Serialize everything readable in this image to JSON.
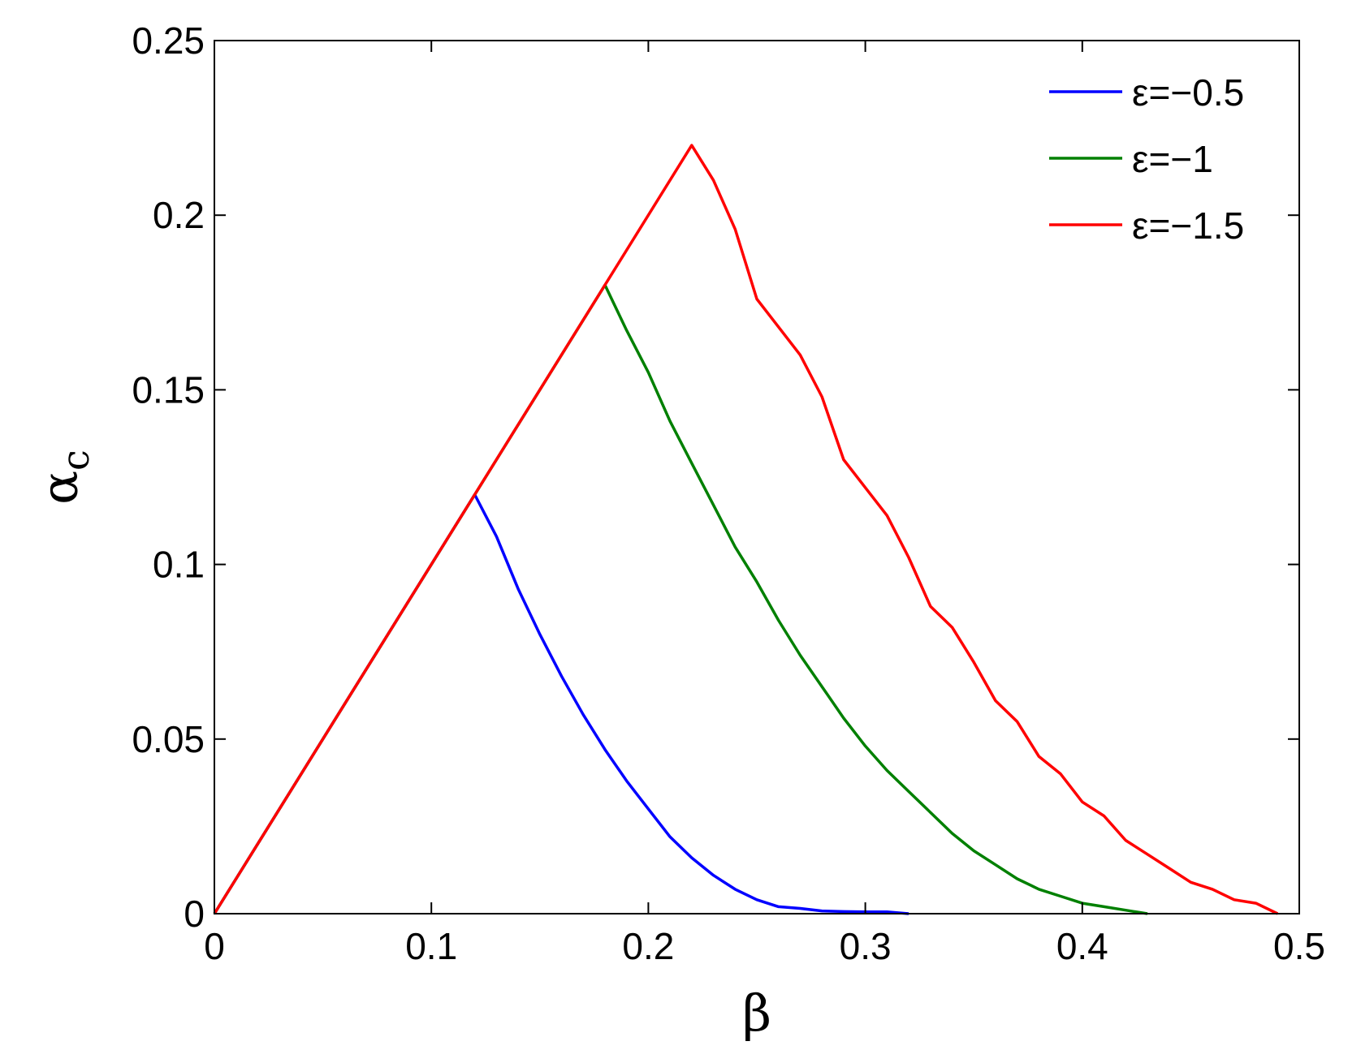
{
  "chart_data": {
    "type": "line",
    "xlabel": "β",
    "ylabel": "α",
    "ylabel_subscript": "c",
    "xlim": [
      0,
      0.5
    ],
    "ylim": [
      0,
      0.25
    ],
    "xticks": [
      "0",
      "0.1",
      "0.2",
      "0.3",
      "0.4",
      "0.5"
    ],
    "yticks": [
      "0",
      "0.05",
      "0.1",
      "0.15",
      "0.2",
      "0.25"
    ],
    "grid": false,
    "legend_position": "top-right",
    "series": [
      {
        "name": "ε=−0.5",
        "color": "#0000ff",
        "x": [
          0,
          0.12,
          0.13,
          0.14,
          0.15,
          0.16,
          0.17,
          0.18,
          0.19,
          0.2,
          0.21,
          0.22,
          0.23,
          0.24,
          0.25,
          0.26,
          0.27,
          0.28,
          0.29,
          0.3,
          0.31,
          0.32
        ],
        "y": [
          0,
          0.12,
          0.108,
          0.093,
          0.08,
          0.068,
          0.057,
          0.047,
          0.038,
          0.03,
          0.022,
          0.016,
          0.011,
          0.007,
          0.004,
          0.002,
          0.0015,
          0.0008,
          0.0006,
          0.0005,
          0.0005,
          0
        ]
      },
      {
        "name": "ε=−1",
        "color": "#008000",
        "x": [
          0,
          0.18,
          0.19,
          0.2,
          0.21,
          0.22,
          0.23,
          0.24,
          0.25,
          0.26,
          0.27,
          0.28,
          0.29,
          0.3,
          0.31,
          0.32,
          0.33,
          0.34,
          0.35,
          0.36,
          0.37,
          0.38,
          0.39,
          0.4,
          0.41,
          0.42,
          0.43
        ],
        "y": [
          0,
          0.18,
          0.167,
          0.155,
          0.141,
          0.129,
          0.117,
          0.105,
          0.095,
          0.084,
          0.074,
          0.065,
          0.056,
          0.048,
          0.041,
          0.035,
          0.029,
          0.023,
          0.018,
          0.014,
          0.01,
          0.007,
          0.005,
          0.003,
          0.002,
          0.001,
          0
        ]
      },
      {
        "name": "ε=−1.5",
        "color": "#ff0000",
        "x": [
          0,
          0.22,
          0.23,
          0.24,
          0.25,
          0.26,
          0.27,
          0.28,
          0.29,
          0.3,
          0.31,
          0.32,
          0.33,
          0.34,
          0.35,
          0.36,
          0.37,
          0.38,
          0.39,
          0.4,
          0.41,
          0.42,
          0.43,
          0.44,
          0.45,
          0.46,
          0.47,
          0.48,
          0.49
        ],
        "y": [
          0,
          0.22,
          0.21,
          0.196,
          0.176,
          0.168,
          0.16,
          0.148,
          0.13,
          0.122,
          0.114,
          0.102,
          0.088,
          0.082,
          0.072,
          0.061,
          0.055,
          0.045,
          0.04,
          0.032,
          0.028,
          0.021,
          0.017,
          0.013,
          0.009,
          0.007,
          0.004,
          0.003,
          0
        ]
      }
    ]
  }
}
